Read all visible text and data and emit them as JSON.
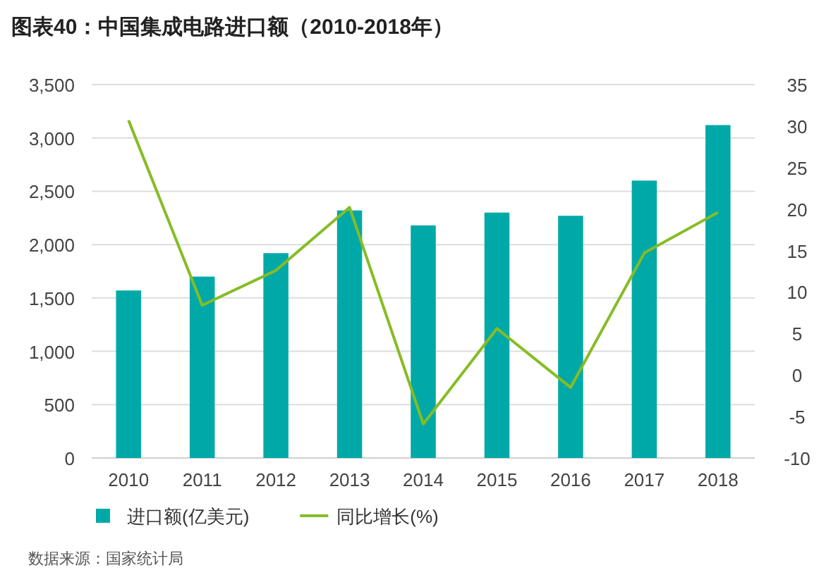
{
  "chart_data": {
    "type": "bar",
    "title": "图表40：中国集成电路进口额（2010-2018年）",
    "categories": [
      "2010",
      "2011",
      "2012",
      "2013",
      "2014",
      "2015",
      "2016",
      "2017",
      "2018"
    ],
    "series": [
      {
        "name": "进口额(亿美元)",
        "color": "#00a9a7",
        "values": [
          1570,
          1700,
          1920,
          2320,
          2180,
          2300,
          2270,
          2600,
          3120
        ]
      },
      {
        "name": "同比增长(%)",
        "type": "line",
        "axis": "y2",
        "color": "#86bc25",
        "values": [
          30.7,
          8.4,
          12.6,
          20.2,
          -5.9,
          5.6,
          -1.5,
          14.7,
          19.6
        ]
      }
    ],
    "ylim": [
      0,
      3500
    ],
    "yticks": [
      {
        "value": 0,
        "label": "0"
      },
      {
        "value": 500,
        "label": "500"
      },
      {
        "value": 1000,
        "label": "1,000"
      },
      {
        "value": 1500,
        "label": "1,500"
      },
      {
        "value": 2000,
        "label": "2,000"
      },
      {
        "value": 2500,
        "label": "2,500"
      },
      {
        "value": 3000,
        "label": "3,000"
      },
      {
        "value": 3500,
        "label": "3,500"
      }
    ],
    "y2lim": [
      -10,
      35
    ],
    "y2ticks": [
      -10,
      -5,
      0,
      5,
      10,
      15,
      20,
      25,
      30,
      35
    ],
    "grid": "y",
    "legend": "bottom",
    "marker": "none",
    "annotations": [
      "数据来源：国家统计局"
    ]
  }
}
